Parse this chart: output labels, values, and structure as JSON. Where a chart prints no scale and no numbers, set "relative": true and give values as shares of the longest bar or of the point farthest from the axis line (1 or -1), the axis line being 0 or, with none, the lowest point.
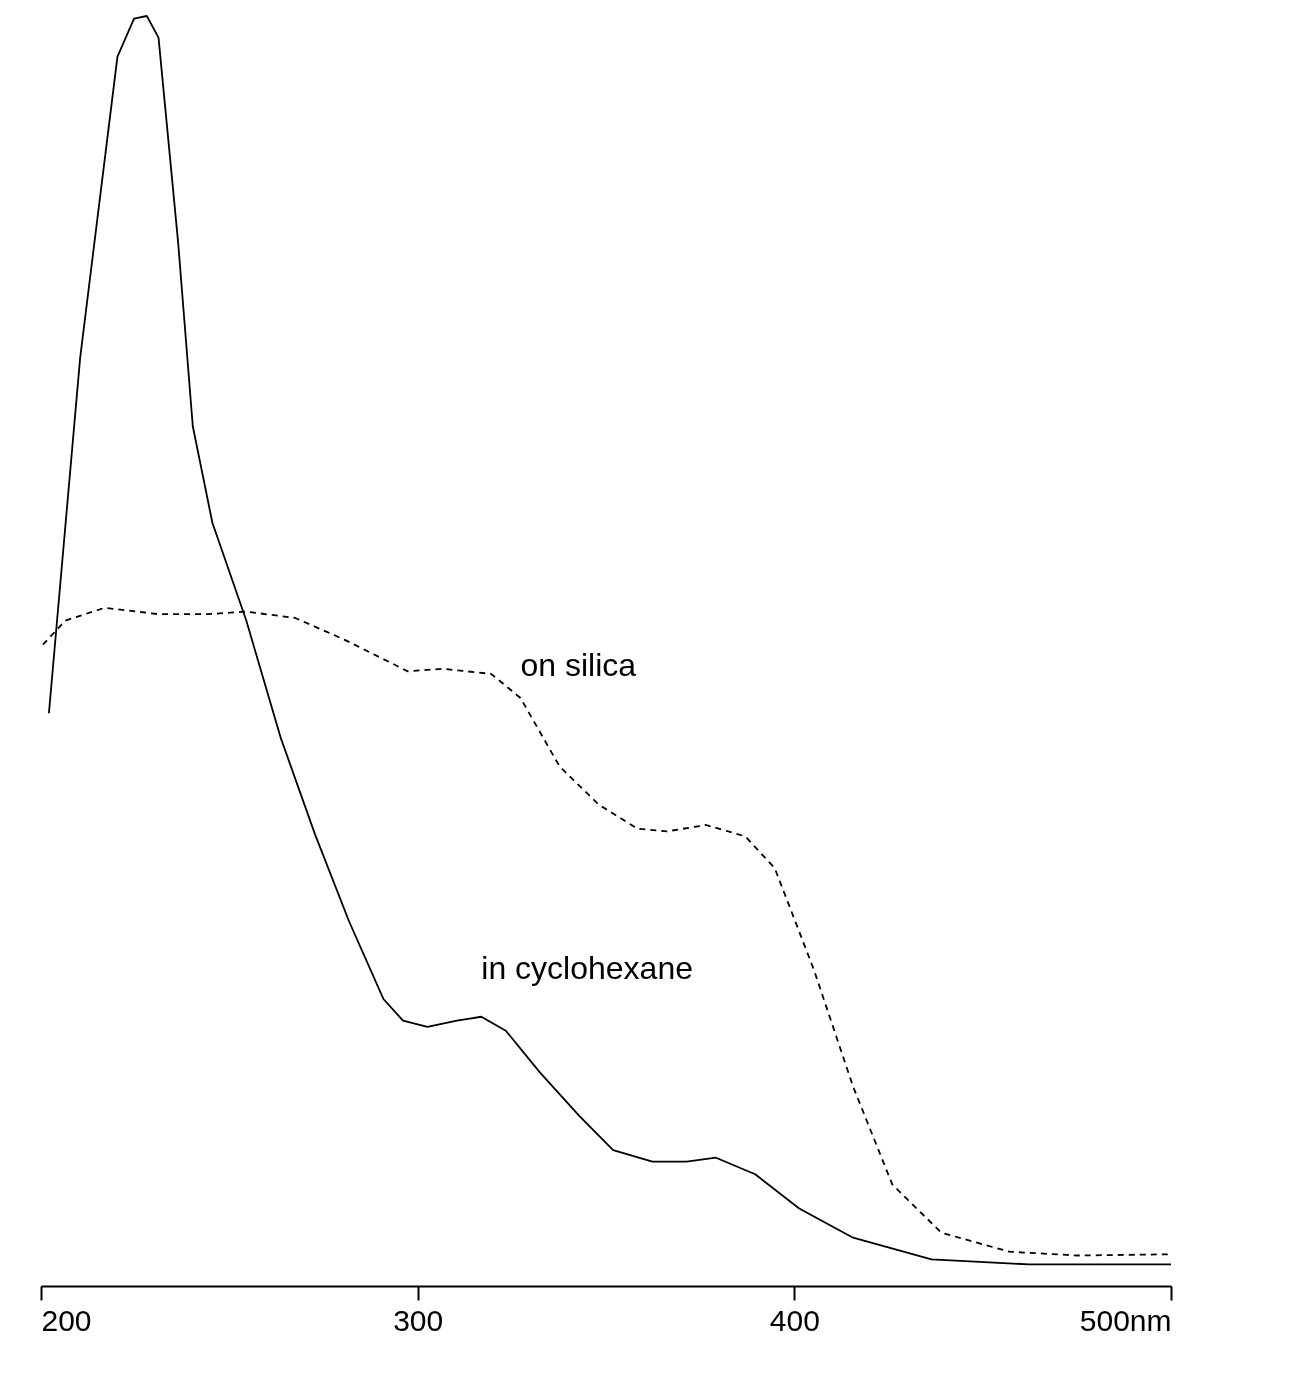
{
  "chart_data": {
    "type": "line",
    "relative": true,
    "xlim": [
      200,
      500
    ],
    "xticks": [
      200,
      300,
      400,
      {
        "value": 500,
        "label": "500nm"
      }
    ],
    "grid": false,
    "legend": false,
    "marker": "none",
    "series": [
      {
        "name": "in cyclohexane",
        "color": "#000000",
        "line_style": "solid",
        "x": [
          202.1,
          210.4,
          220.3,
          224.7,
          228.1,
          231.2,
          236.4,
          240.3,
          245.5,
          254.5,
          263.6,
          272.7,
          281.8,
          290.9,
          296.1,
          302.6,
          310.4,
          316.9,
          323.4,
          332.5,
          342.9,
          351.9,
          362.3,
          371.4,
          379.2,
          389.6,
          401.3,
          415.6,
          436.4,
          462.3,
          500
        ],
        "values": [
          0.451,
          0.731,
          0.968,
          0.998,
          1.0,
          0.983,
          0.822,
          0.677,
          0.601,
          0.524,
          0.432,
          0.356,
          0.287,
          0.226,
          0.209,
          0.204,
          0.209,
          0.212,
          0.201,
          0.168,
          0.134,
          0.107,
          0.098,
          0.098,
          0.101,
          0.088,
          0.061,
          0.038,
          0.021,
          0.017,
          0.017
        ]
      },
      {
        "name": "on silica",
        "color": "#000000",
        "line_style": "dashed",
        "x": [
          200.5,
          206.5,
          216.9,
          231.2,
          244.2,
          254.5,
          267.5,
          280.5,
          297.4,
          306.5,
          319.5,
          327.3,
          337.7,
          348.1,
          358.4,
          366.2,
          376.6,
          387.0,
          394.8,
          405.2,
          415.6,
          426.0,
          439.0,
          457.1,
          475.3,
          500
        ],
        "values": [
          0.505,
          0.524,
          0.534,
          0.529,
          0.529,
          0.531,
          0.526,
          0.509,
          0.484,
          0.486,
          0.482,
          0.463,
          0.409,
          0.379,
          0.36,
          0.358,
          0.363,
          0.354,
          0.329,
          0.249,
          0.157,
          0.08,
          0.042,
          0.027,
          0.024,
          0.025
        ]
      }
    ]
  }
}
